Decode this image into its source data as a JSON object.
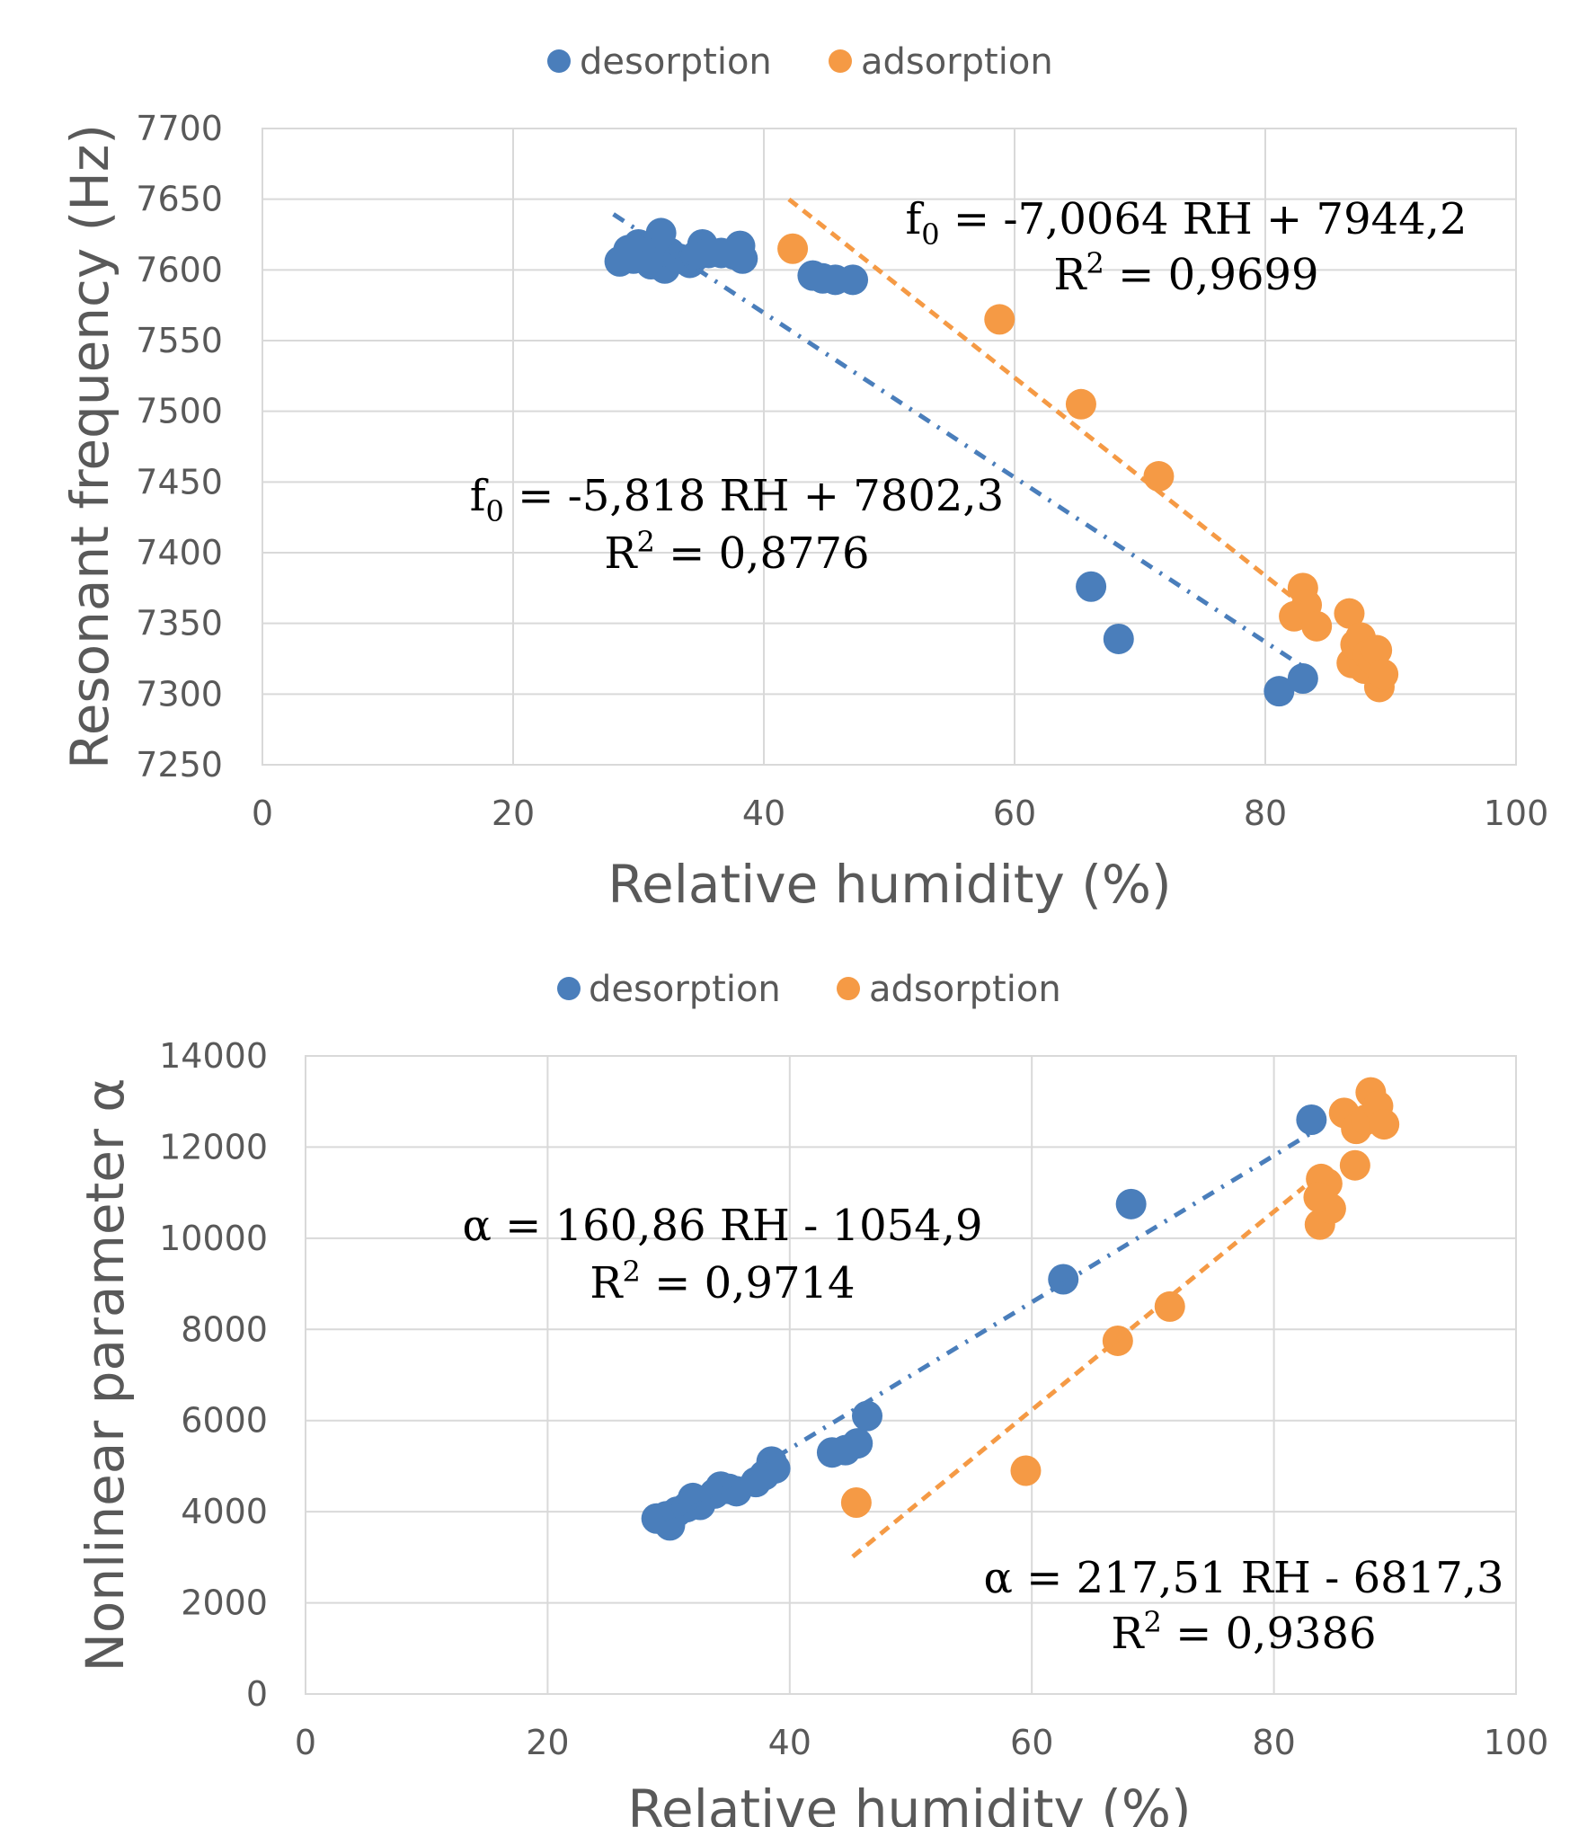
{
  "colors": {
    "desorption": "#4a7ebb",
    "adsorption": "#f59a45",
    "grid": "#d9d9d9",
    "text": "#595959"
  },
  "chart_data": [
    {
      "type": "scatter",
      "xlabel": "Relative humidity (%)",
      "ylabel": "Resonant frequency (Hz)",
      "xlim": [
        0,
        100
      ],
      "ylim": [
        7250,
        7700
      ],
      "xticks": [
        "0",
        "20",
        "40",
        "60",
        "80",
        "100"
      ],
      "yticks": [
        "7250",
        "7300",
        "7350",
        "7400",
        "7450",
        "7500",
        "7550",
        "7600",
        "7650",
        "7700"
      ],
      "grid": true,
      "legend_position": "top",
      "series": [
        {
          "name": "desorption",
          "points": [
            [
              28.5,
              7606
            ],
            [
              29.2,
              7614
            ],
            [
              29.6,
              7608
            ],
            [
              30.0,
              7618
            ],
            [
              30.5,
              7611
            ],
            [
              31.0,
              7604
            ],
            [
              31.5,
              7617
            ],
            [
              31.8,
              7626
            ],
            [
              32.1,
              7601
            ],
            [
              32.5,
              7612
            ],
            [
              33.2,
              7608
            ],
            [
              34.1,
              7605
            ],
            [
              34.6,
              7610
            ],
            [
              35.1,
              7618
            ],
            [
              35.6,
              7612
            ],
            [
              36.6,
              7612
            ],
            [
              37.6,
              7611
            ],
            [
              38.1,
              7617
            ],
            [
              38.3,
              7608
            ],
            [
              43.9,
              7596
            ],
            [
              44.7,
              7594
            ],
            [
              45.7,
              7593
            ],
            [
              47.1,
              7593
            ],
            [
              66.1,
              7376
            ],
            [
              68.3,
              7339
            ],
            [
              81.1,
              7302
            ],
            [
              83.0,
              7311
            ]
          ],
          "trendline": {
            "slope": -5.818,
            "intercept": 7802.3,
            "x_range": [
              28.0,
              83.0
            ],
            "style": "dash-dot"
          },
          "equation": {
            "lead": "f",
            "sub": "0",
            "rest": " = -5,818 RH + 7802,3",
            "r2_label": "R",
            "r2_sup": "2",
            "r2_value": " = 0,8776"
          }
        },
        {
          "name": "adsorption",
          "points": [
            [
              42.3,
              7615
            ],
            [
              58.8,
              7565
            ],
            [
              65.3,
              7505
            ],
            [
              71.5,
              7454
            ],
            [
              82.3,
              7355
            ],
            [
              83.0,
              7375
            ],
            [
              83.3,
              7363
            ],
            [
              84.1,
              7348
            ],
            [
              86.7,
              7357
            ],
            [
              86.9,
              7322
            ],
            [
              87.2,
              7335
            ],
            [
              87.6,
              7340
            ],
            [
              87.9,
              7318
            ],
            [
              88.2,
              7328
            ],
            [
              88.6,
              7324
            ],
            [
              88.9,
              7331
            ],
            [
              89.1,
              7305
            ],
            [
              89.4,
              7314
            ]
          ],
          "trendline": {
            "slope": -7.0064,
            "intercept": 7944.2,
            "x_range": [
              42.0,
              82.8
            ],
            "style": "dash"
          },
          "equation": {
            "lead": "f",
            "sub": "0",
            "rest": " = -7,0064 RH + 7944,2",
            "r2_label": "R",
            "r2_sup": "2",
            "r2_value": " = 0,9699"
          }
        }
      ]
    },
    {
      "type": "scatter",
      "xlabel": "Relative humidity (%)",
      "ylabel": "Nonlinear parameter α",
      "xlim": [
        0,
        100
      ],
      "ylim": [
        0,
        14000
      ],
      "xticks": [
        "0",
        "20",
        "40",
        "60",
        "80",
        "100"
      ],
      "yticks": [
        "0",
        "2000",
        "4000",
        "6000",
        "8000",
        "10000",
        "12000",
        "14000"
      ],
      "grid": true,
      "legend_position": "top",
      "series": [
        {
          "name": "desorption",
          "points": [
            [
              29.0,
              3850
            ],
            [
              29.8,
              3900
            ],
            [
              30.1,
              3700
            ],
            [
              30.7,
              4000
            ],
            [
              31.5,
              4100
            ],
            [
              32.0,
              4300
            ],
            [
              32.6,
              4150
            ],
            [
              33.8,
              4400
            ],
            [
              34.3,
              4550
            ],
            [
              35.0,
              4500
            ],
            [
              35.6,
              4450
            ],
            [
              37.2,
              4650
            ],
            [
              37.9,
              4800
            ],
            [
              38.5,
              5100
            ],
            [
              38.8,
              4950
            ],
            [
              43.5,
              5300
            ],
            [
              44.6,
              5350
            ],
            [
              45.6,
              5500
            ],
            [
              46.4,
              6100
            ],
            [
              62.6,
              9100
            ],
            [
              68.2,
              10750
            ],
            [
              83.1,
              12600
            ]
          ],
          "trendline": {
            "slope": 160.86,
            "intercept": -1054.9,
            "x_range": [
              29.5,
              83.0
            ],
            "style": "dash-dot"
          },
          "equation": {
            "lead": "α",
            "sub": "",
            "rest": " = 160,86 RH - 1054,9",
            "r2_label": "R",
            "r2_sup": "2",
            "r2_value": " = 0,9714"
          }
        },
        {
          "name": "adsorption",
          "points": [
            [
              45.5,
              4200
            ],
            [
              59.5,
              4900
            ],
            [
              67.1,
              7750
            ],
            [
              71.4,
              8500
            ],
            [
              83.8,
              10300
            ],
            [
              83.9,
              11300
            ],
            [
              84.4,
              11200
            ],
            [
              84.7,
              10650
            ],
            [
              83.7,
              10900
            ],
            [
              86.7,
              11600
            ],
            [
              85.8,
              12750
            ],
            [
              86.8,
              12400
            ],
            [
              87.6,
              12600
            ],
            [
              88.0,
              13200
            ],
            [
              88.6,
              12900
            ],
            [
              89.1,
              12500
            ]
          ],
          "trendline": {
            "slope": 217.51,
            "intercept": -6817.3,
            "x_range": [
              45.2,
              82.5
            ],
            "style": "dash"
          },
          "equation": {
            "lead": "α",
            "sub": "",
            "rest": " = 217,51 RH - 6817,3",
            "r2_label": "R",
            "r2_sup": "2",
            "r2_value": " = 0,9386"
          }
        }
      ]
    }
  ]
}
